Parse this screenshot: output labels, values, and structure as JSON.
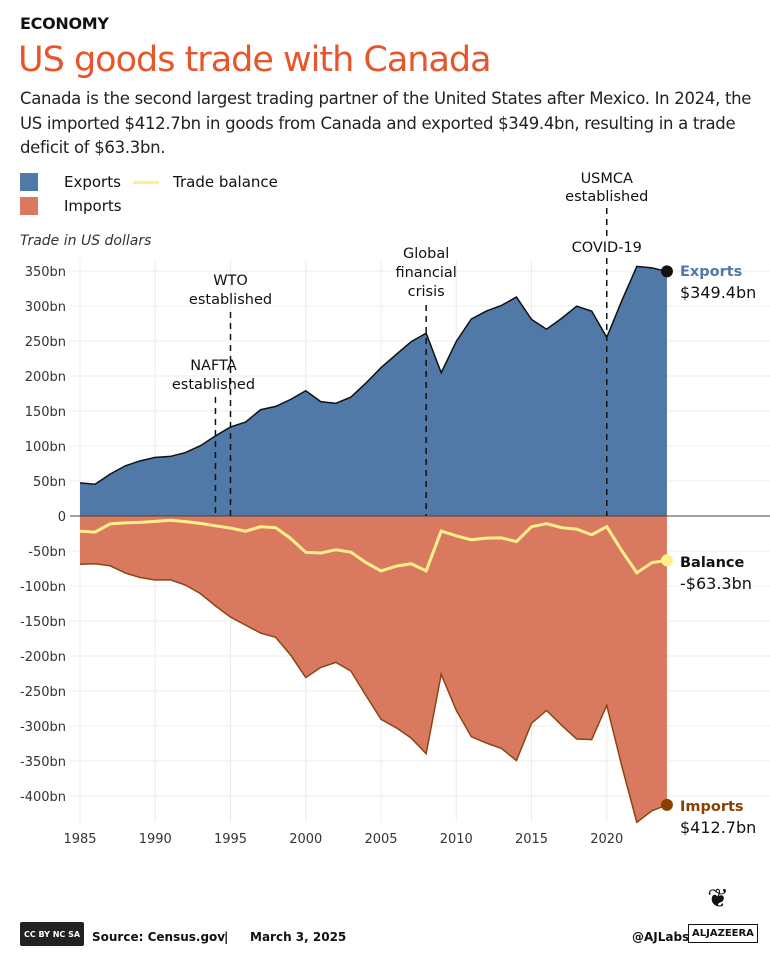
{
  "header": {
    "kicker": "ECONOMY",
    "title": "US goods trade with Canada",
    "subtitle": "Canada is the second largest trading partner of the United States after Mexico. In 2024, the US imported $412.7bn in goods from Canada and exported $349.4bn, resulting in a trade deficit of $63.3bn."
  },
  "legend": {
    "exports": "Exports",
    "imports": "Imports",
    "balance": "Trade balance"
  },
  "chart_data": {
    "type": "area",
    "ylabel": "Trade in US dollars",
    "ylim": [
      -440,
      365
    ],
    "xlim": [
      1985,
      2024
    ],
    "grid": true,
    "legend_placement": "top-left",
    "colors": {
      "exports": "#5179a8",
      "imports": "#d97a60",
      "balance": "#fff08a",
      "imports_line": "#8b4513",
      "title": "#e8552a"
    },
    "yticks": [
      350,
      300,
      250,
      200,
      150,
      100,
      50,
      0,
      -50,
      -100,
      -150,
      -200,
      -250,
      -300,
      -350,
      -400
    ],
    "ytick_labels": [
      "350bn",
      "300bn",
      "250bn",
      "200bn",
      "150bn",
      "100bn",
      "50bn",
      "0",
      "-50bn",
      "-100bn",
      "-150bn",
      "-200bn",
      "-250bn",
      "-300bn",
      "-350bn",
      "-400bn"
    ],
    "xticks": [
      1985,
      1990,
      1995,
      2000,
      2005,
      2010,
      2015,
      2020
    ],
    "xtick_labels": [
      "1985",
      "1990",
      "1995",
      "2000",
      "2005",
      "2010",
      "2015",
      "2020"
    ],
    "x": [
      1985,
      1986,
      1987,
      1988,
      1989,
      1990,
      1991,
      1992,
      1993,
      1994,
      1995,
      1996,
      1997,
      1998,
      1999,
      2000,
      2001,
      2002,
      2003,
      2004,
      2005,
      2006,
      2007,
      2008,
      2009,
      2010,
      2011,
      2012,
      2013,
      2014,
      2015,
      2016,
      2017,
      2018,
      2019,
      2020,
      2021,
      2022,
      2023,
      2024
    ],
    "series": [
      {
        "name": "Exports",
        "values": [
          47.3,
          45.3,
          59.8,
          71.6,
          78.8,
          83.7,
          85.1,
          90.6,
          100.4,
          114.4,
          127.2,
          134.2,
          151.8,
          156.6,
          166.6,
          178.9,
          163.4,
          160.9,
          169.9,
          189.9,
          211.9,
          230.7,
          248.9,
          261.1,
          204.7,
          249.3,
          281.3,
          292.7,
          300.8,
          312.8,
          280.9,
          266.8,
          282.3,
          299.7,
          292.6,
          255.1,
          307.6,
          356.5,
          354.4,
          349.4
        ]
      },
      {
        "name": "Imports",
        "values": [
          -69.0,
          -68.3,
          -71.1,
          -81.4,
          -87.9,
          -91.4,
          -91.1,
          -98.6,
          -110.9,
          -128.4,
          -144.4,
          -155.9,
          -167.2,
          -173.3,
          -198.7,
          -230.8,
          -216.3,
          -209.1,
          -221.6,
          -256.4,
          -290.4,
          -302.4,
          -317.1,
          -339.5,
          -226.2,
          -277.6,
          -315.3,
          -324.3,
          -332.1,
          -349.3,
          -296.2,
          -277.8,
          -299.0,
          -318.5,
          -319.4,
          -270.4,
          -357.2,
          -437.7,
          -421.1,
          -412.7
        ]
      },
      {
        "name": "Trade balance",
        "values": [
          -21.7,
          -23.0,
          -11.3,
          -9.8,
          -9.1,
          -7.7,
          -6.0,
          -8.0,
          -10.5,
          -14.0,
          -17.2,
          -21.7,
          -15.4,
          -16.7,
          -32.1,
          -51.9,
          -52.9,
          -48.2,
          -51.7,
          -66.5,
          -78.5,
          -71.7,
          -68.2,
          -78.4,
          -21.5,
          -28.3,
          -34.0,
          -31.6,
          -31.3,
          -36.5,
          -15.3,
          -11.0,
          -16.7,
          -18.8,
          -26.8,
          -15.3,
          -49.6,
          -81.2,
          -66.7,
          -63.3
        ]
      }
    ],
    "annotations": [
      {
        "year": 1994,
        "label": [
          "NAFTA",
          "established"
        ]
      },
      {
        "year": 1995,
        "label": [
          "WTO",
          "established"
        ]
      },
      {
        "year": 2008,
        "label": [
          "Global",
          "financial",
          "crisis"
        ]
      },
      {
        "year": 2020,
        "label": [
          "COVID-19"
        ]
      },
      {
        "year": 2020,
        "label": [
          "USMCA",
          "established"
        ]
      }
    ],
    "end_labels": {
      "exports": {
        "name": "Exports",
        "value": "$349.4bn"
      },
      "balance": {
        "name": "Balance",
        "value": "-$63.3bn"
      },
      "imports": {
        "name": "Imports",
        "value": "$412.7bn"
      }
    }
  },
  "footer": {
    "license": "CC BY NC SA",
    "source": "Source:  Census.gov",
    "separator": "|",
    "date": "March 3, 2025",
    "handle": "@AJLabs",
    "logo": "ALJAZEERA"
  }
}
